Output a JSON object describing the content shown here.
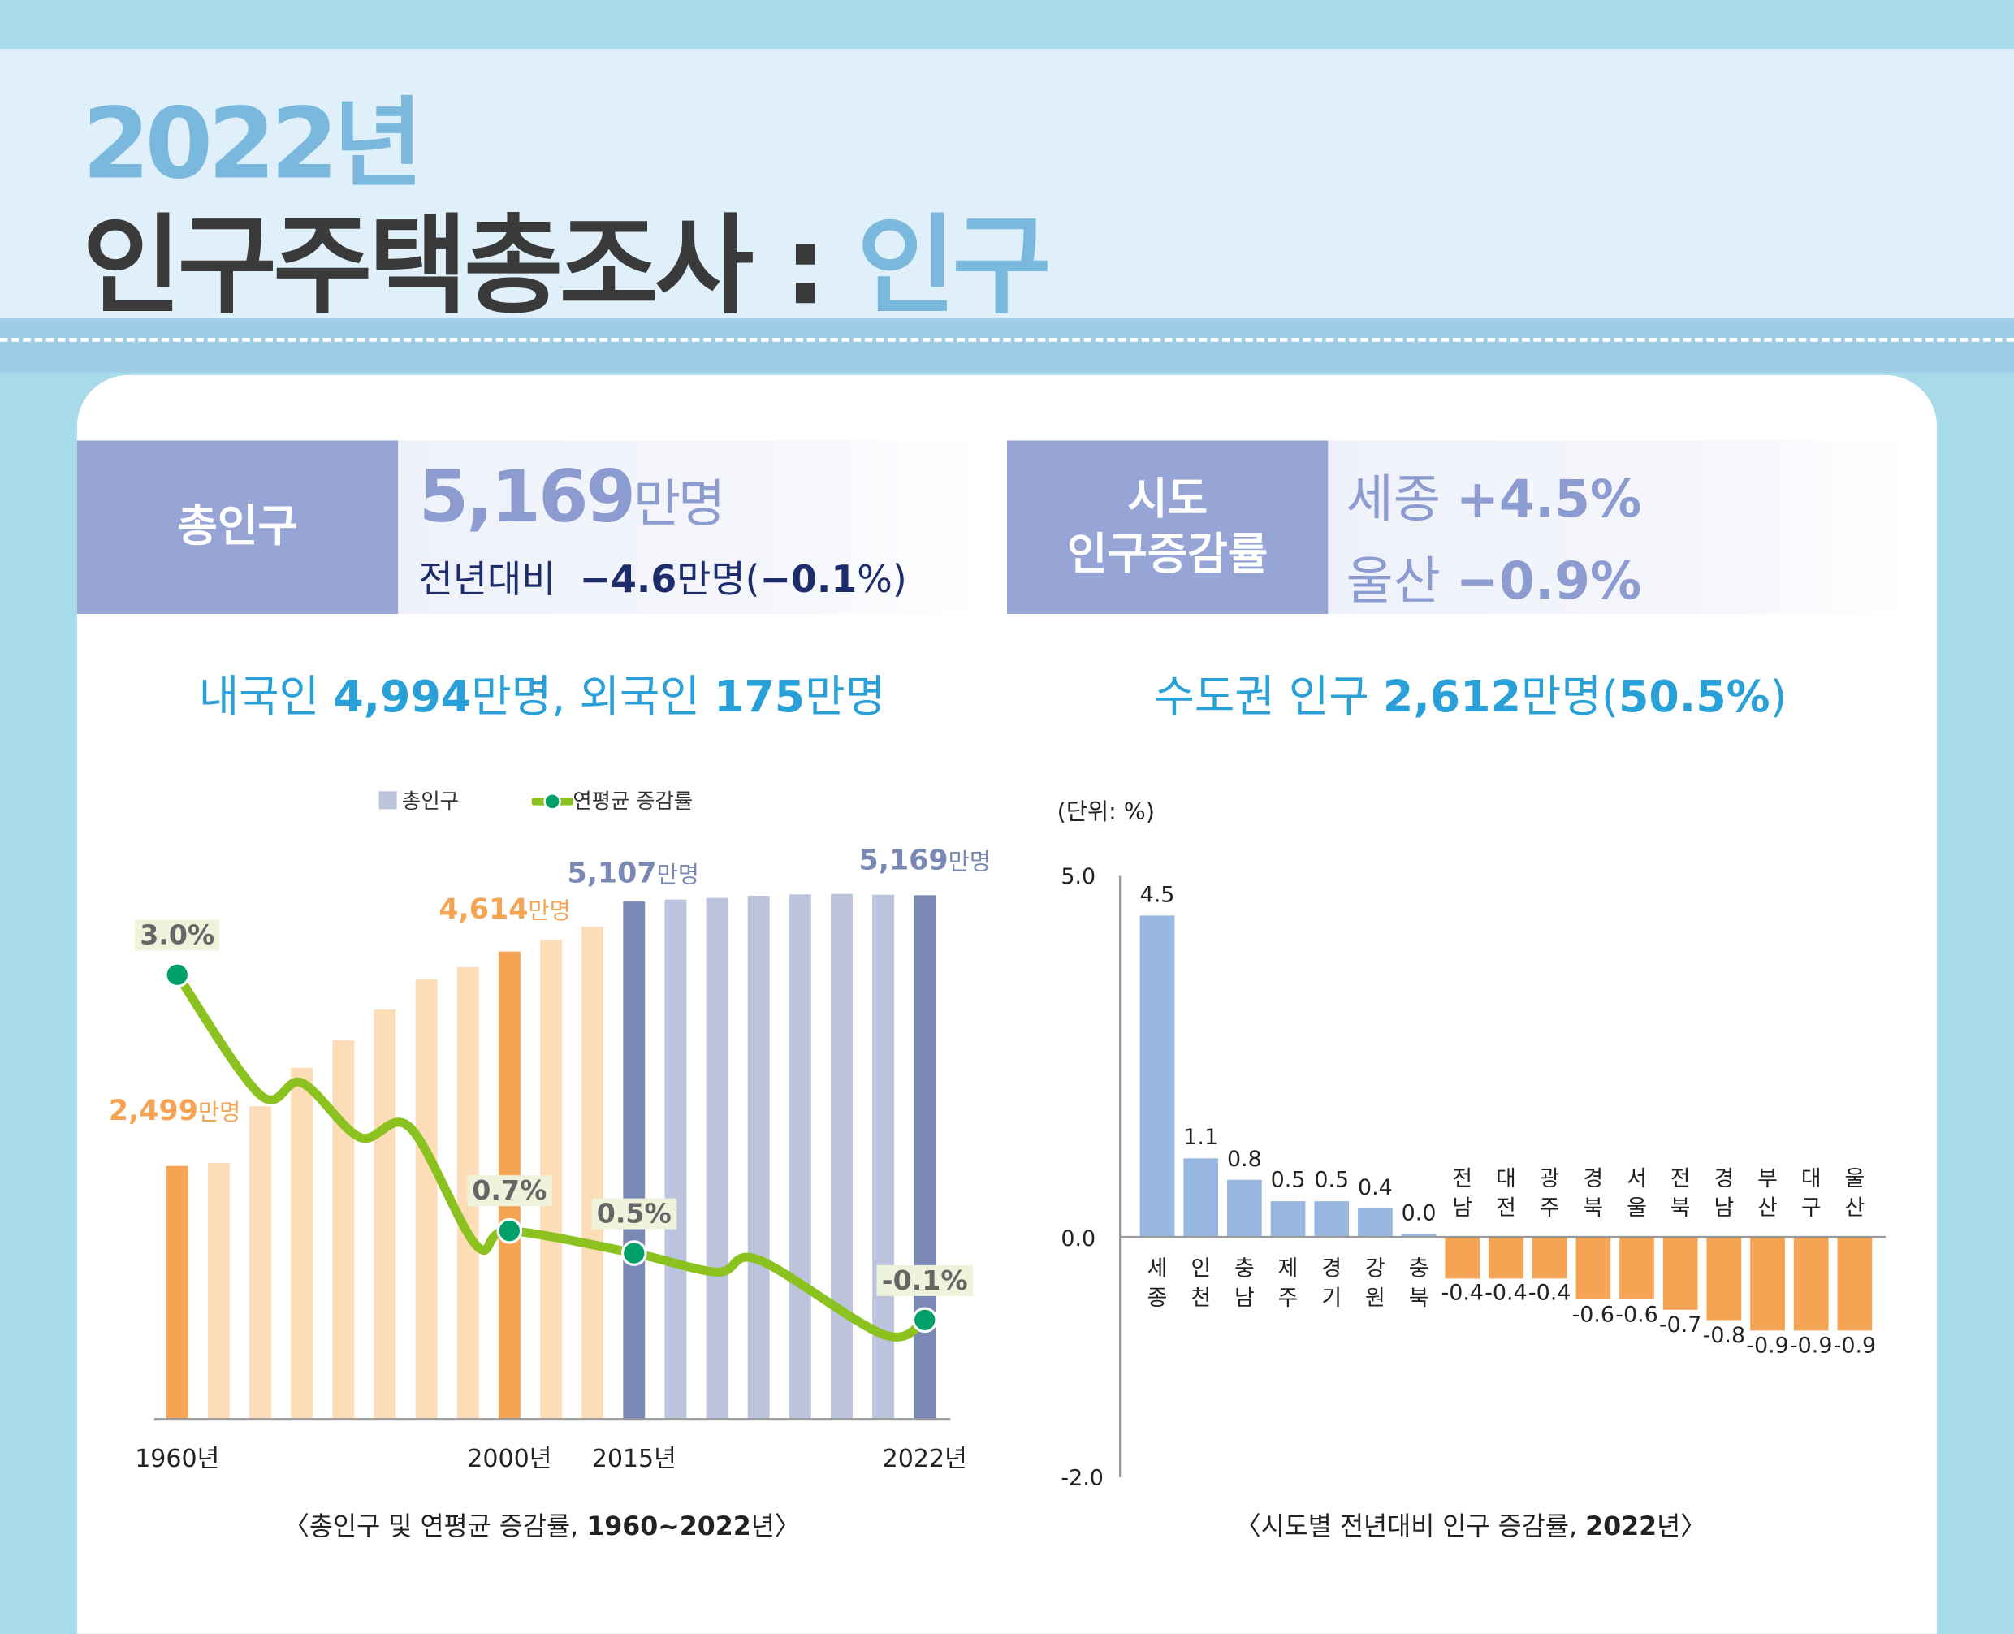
{
  "header": {
    "year": "2022년",
    "title_main": "인구주택총조사 :",
    "title_highlight": "인구"
  },
  "total": {
    "label": "총인구",
    "value": "5,169",
    "unit": "만명",
    "yoy_label": "전년대비",
    "yoy_value": "−4.6",
    "yoy_unit": "만명(",
    "yoy_pct": "−0.1",
    "yoy_tail": "%)"
  },
  "regional": {
    "label_line1": "시도",
    "label_line2": "인구증감률",
    "top_region": "세종",
    "top_value": "+4.5%",
    "bottom_region": "울산",
    "bottom_value": "−0.9%"
  },
  "left_sub": {
    "t1": "내국인 ",
    "v1": "4,994",
    "t2": "만명, 외국인 ",
    "v2": "175",
    "t3": "만명"
  },
  "right_sub": {
    "t1": "수도권 인구 ",
    "v1": "2,612",
    "t2": "만명(",
    "v2": "50.5%",
    "t3": ")"
  },
  "colors": {
    "orange": "#f4a453",
    "light_orange": "#fddcb8",
    "navy": "#7a88b6",
    "lavender": "#bcc3dc",
    "line": "#8cc21f",
    "dot": "#00a06a",
    "blue_bar": "#98b7e2",
    "accent": "#29a0d8"
  },
  "chart_data": [
    {
      "type": "bar",
      "title": "〈총인구 및 연평균 증감률, 1960~2022년〉",
      "title_plain": "〈총인구 및 연평균 증감률, ",
      "title_bold": "1960~2022",
      "title_tail": "년〉",
      "legend": {
        "bar": "총인구",
        "line": "연평균 증감률",
        "placement": "top"
      },
      "x": [
        1960,
        1966,
        1970,
        1975,
        1980,
        1985,
        1990,
        1995,
        2000,
        2005,
        2010,
        2015,
        2016,
        2017,
        2018,
        2019,
        2020,
        2021,
        2022
      ],
      "x_tick_labels": [
        {
          "year": 1960,
          "label": "1960년"
        },
        {
          "year": 2000,
          "label": "2000년"
        },
        {
          "year": 2015,
          "label": "2015년"
        },
        {
          "year": 2022,
          "label": "2022년"
        }
      ],
      "series": [
        {
          "name": "총인구",
          "unit": "만명",
          "values": [
            2499,
            2530,
            3088,
            3468,
            3741,
            4042,
            4339,
            4461,
            4614,
            4728,
            4858,
            5107,
            5127,
            5142,
            5164,
            5178,
            5183,
            5174,
            5169
          ]
        },
        {
          "name": "연평균 증감률",
          "unit": "%",
          "type": "line",
          "points": [
            [
              1960,
              3.0
            ],
            [
              1970,
              1.92
            ],
            [
              1975,
              2.03
            ],
            [
              1982,
              1.54
            ],
            [
              1988,
              1.63
            ],
            [
              1996,
              0.57
            ],
            [
              2000,
              0.7
            ],
            [
              2015,
              0.5
            ],
            [
              2017,
              0.33
            ],
            [
              2018,
              0.44
            ],
            [
              2021,
              -0.23
            ],
            [
              2022,
              -0.1
            ]
          ]
        }
      ],
      "value_labels": [
        {
          "year": 1960,
          "value": "2,499",
          "unit": "만명",
          "color": "#f4a453"
        },
        {
          "year": 2000,
          "value": "4,614",
          "unit": "만명",
          "color": "#f4a453"
        },
        {
          "year": 2015,
          "value": "5,107",
          "unit": "만명",
          "color": "#7a88b6"
        },
        {
          "year": 2022,
          "value": "5,169",
          "unit": "만명",
          "color": "#7a88b6"
        }
      ],
      "rate_labels": [
        {
          "year": 1960,
          "rate": 3.0,
          "label": "3.0%"
        },
        {
          "year": 2000,
          "rate": 0.7,
          "label": "0.7%"
        },
        {
          "year": 2015,
          "rate": 0.5,
          "label": "0.5%"
        },
        {
          "year": 2022,
          "rate": -0.1,
          "label": "-0.1%"
        }
      ],
      "grid": false
    },
    {
      "type": "bar",
      "title_plain": "〈시도별 전년대비 인구 증감률, ",
      "title_bold": "2022",
      "title_tail": "년〉",
      "unit_label": "(단위: %)",
      "ylim": [
        -2.0,
        5.0
      ],
      "y_ticks": [
        "5.0",
        "0.0",
        "-2.0"
      ],
      "categories": [
        "세종",
        "인천",
        "충남",
        "제주",
        "경기",
        "강원",
        "충북",
        "전남",
        "대전",
        "광주",
        "경북",
        "서울",
        "전북",
        "경남",
        "부산",
        "대구",
        "울산"
      ],
      "values": [
        4.5,
        1.1,
        0.8,
        0.5,
        0.5,
        0.4,
        0.0,
        -0.4,
        -0.4,
        -0.4,
        -0.6,
        -0.6,
        -0.7,
        -0.8,
        -0.9,
        -0.9,
        -0.9
      ],
      "labels": [
        "4.5",
        "1.1",
        "0.8",
        "0.5",
        "0.5",
        "0.4",
        "0.0",
        "-0.4",
        "-0.4",
        "-0.4",
        "-0.6",
        "-0.6",
        "-0.7",
        "-0.8",
        "-0.9",
        "-0.9",
        "-0.9"
      ],
      "grid": false
    }
  ]
}
